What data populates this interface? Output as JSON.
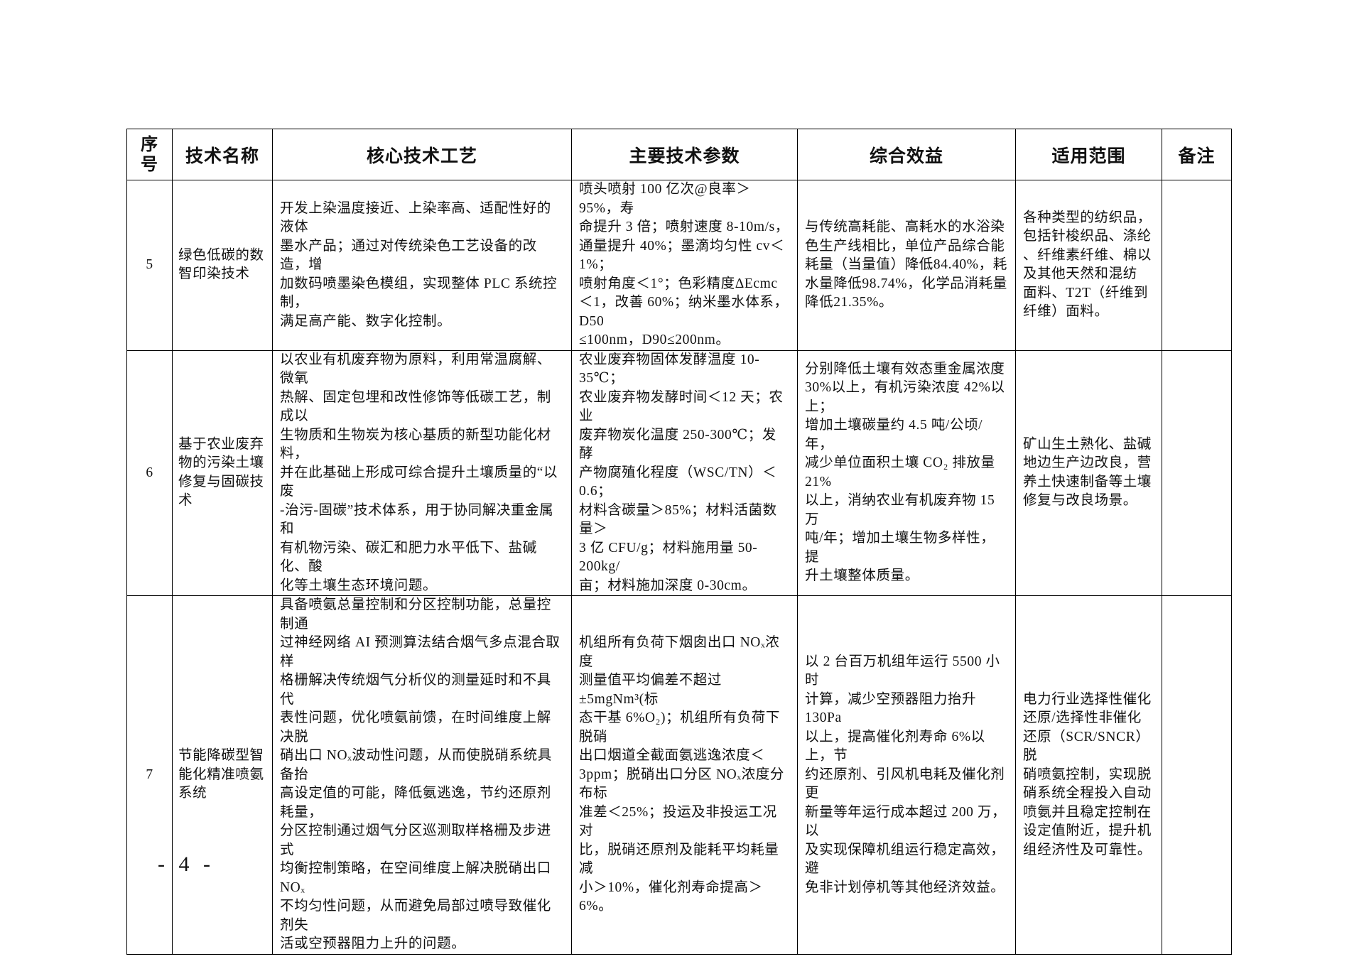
{
  "table": {
    "headers": [
      "序\n号",
      "技术名称",
      "核心技术工艺",
      "主要技术参数",
      "综合效益",
      "适用范围",
      "备注"
    ],
    "rows": [
      {
        "no": "5",
        "name": "绿色低碳的数\n智印染技术",
        "process": "开发上染温度接近、上染率高、适配性好的液体\n墨水产品；通过对传统染色工艺设备的改造，增\n加数码喷墨染色模组，实现整体 PLC 系统控制，\n满足高产能、数字化控制。",
        "params": "喷头喷射 100 亿次@良率＞95%，寿\n命提升 3 倍；喷射速度 8-10m/s，\n通量提升 40%；墨滴均匀性 cv＜1%；\n喷射角度＜1°；色彩精度ΔEcmc\n＜1，改善 60%；纳米墨水体系，D50\n≤100nm，D90≤200nm。",
        "benefits": "与传统高耗能、高耗水的水浴染\n色生产线相比，单位产品综合能\n耗量（当量值）降低84.40%，耗\n水量降低98.74%，化学品消耗量\n降低21.35%。",
        "scope": "各种类型的纺织品，\n包括针梭织品、涤纶\n、纤维素纤维、棉以\n及其他天然和混纺\n面料、T2T（纤维到\n纤维）面料。",
        "remark": ""
      },
      {
        "no": "6",
        "name": "基于农业废弃\n物的污染土壤\n修复与固碳技\n术",
        "process": "以农业有机废弃物为原料，利用常温腐解、微氧\n热解、固定包埋和改性修饰等低碳工艺，制成以\n生物质和生物炭为核心基质的新型功能化材料，\n并在此基础上形成可综合提升土壤质量的“以废\n-治污-固碳”技术体系，用于协同解决重金属和\n有机物污染、碳汇和肥力水平低下、盐碱化、酸\n化等土壤生态环境问题。",
        "params": "农业废弃物固体发酵温度 10-35℃；\n农业废弃物发酵时间＜12 天；农业\n废弃物炭化温度 250-300℃；发酵\n产物腐殖化程度（WSC/TN）＜0.6；\n材料含碳量＞85%；材料活菌数量＞\n3 亿 CFU/g；材料施用量 50-200kg/\n亩；材料施加深度 0-30cm。",
        "benefits": "分别降低土壤有效态重金属浓度\n30%以上，有机污染浓度 42%以上；\n增加土壤碳量约 4.5 吨/公顷/年，\n减少单位面积土壤 CO₂ 排放量 21%\n以上，消纳农业有机废弃物 15 万\n吨/年；增加土壤生物多样性，提\n升土壤整体质量。",
        "scope": "矿山生土熟化、盐碱\n地边生产边改良，营\n养土快速制备等土壤\n修复与改良场景。",
        "remark": ""
      },
      {
        "no": "7",
        "name": "节能降碳型智\n能化精准喷氨\n系统",
        "process": "具备喷氨总量控制和分区控制功能，总量控制通\n过神经网络 AI 预测算法结合烟气多点混合取样\n格栅解决传统烟气分析仪的测量延时和不具代\n表性问题，优化喷氨前馈，在时间维度上解决脱\n硝出口 NOₓ波动性问题，从而使脱硝系统具备抬\n高设定值的可能，降低氨逃逸，节约还原剂耗量，\n分区控制通过烟气分区巡测取样格栅及步进式\n均衡控制策略，在空间维度上解决脱硝出口 NOₓ\n不均匀性问题，从而避免局部过喷导致催化剂失\n活或空预器阻力上升的问题。",
        "params": "机组所有负荷下烟囱出口 NOₓ浓度\n测量值平均偏差不超过±5mgNm³(标\n态干基 6%O₂)；机组所有负荷下脱硝\n出口烟道全截面氨逃逸浓度＜\n3ppm；脱硝出口分区 NOₓ浓度分布标\n准差＜25%；投运及非投运工况对\n比，脱硝还原剂及能耗平均耗量减\n小＞10%，催化剂寿命提高＞6%。",
        "benefits": "以 2 台百万机组年运行 5500 小时\n计算，减少空预器阻力抬升 130Pa\n以上，提高催化剂寿命 6%以上，节\n约还原剂、引风机电耗及催化剂更\n新量等年运行成本超过 200 万，以\n及实现保障机组运行稳定高效，避\n免非计划停机等其他经济效益。",
        "scope": "电力行业选择性催化\n还原/选择性非催化\n还原（SCR/SNCR）脱\n硝喷氨控制，实现脱\n硝系统全程投入自动\n喷氨并且稳定控制在\n设定值附近，提升机\n组经济性及可靠性。",
        "remark": ""
      }
    ]
  },
  "footer": {
    "page_number": "- 4 -"
  }
}
